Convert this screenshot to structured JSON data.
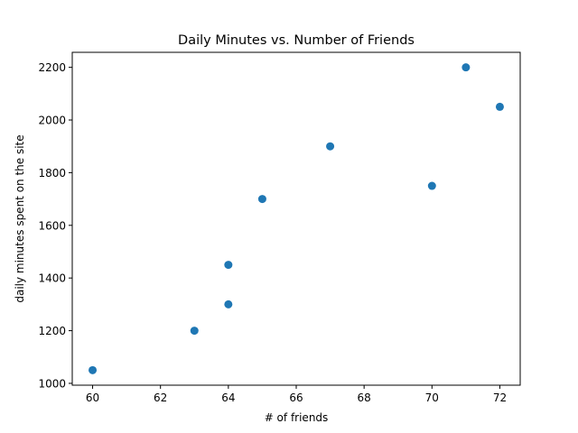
{
  "chart_data": {
    "type": "scatter",
    "title": "Daily Minutes vs. Number of Friends",
    "xlabel": "# of friends",
    "ylabel": "daily minutes spent on the site",
    "xlim": [
      59.4,
      72.6
    ],
    "ylim": [
      993,
      2257
    ],
    "xticks": [
      60,
      62,
      64,
      66,
      68,
      70,
      72
    ],
    "yticks": [
      1000,
      1200,
      1400,
      1600,
      1800,
      2000,
      2200
    ],
    "grid": false,
    "marker_color": "#1f77b4",
    "points": [
      {
        "x": 60,
        "y": 1050
      },
      {
        "x": 63,
        "y": 1200
      },
      {
        "x": 64,
        "y": 1300
      },
      {
        "x": 64,
        "y": 1450
      },
      {
        "x": 65,
        "y": 1700
      },
      {
        "x": 67,
        "y": 1900
      },
      {
        "x": 70,
        "y": 1750
      },
      {
        "x": 71,
        "y": 2200
      },
      {
        "x": 72,
        "y": 2050
      }
    ]
  }
}
